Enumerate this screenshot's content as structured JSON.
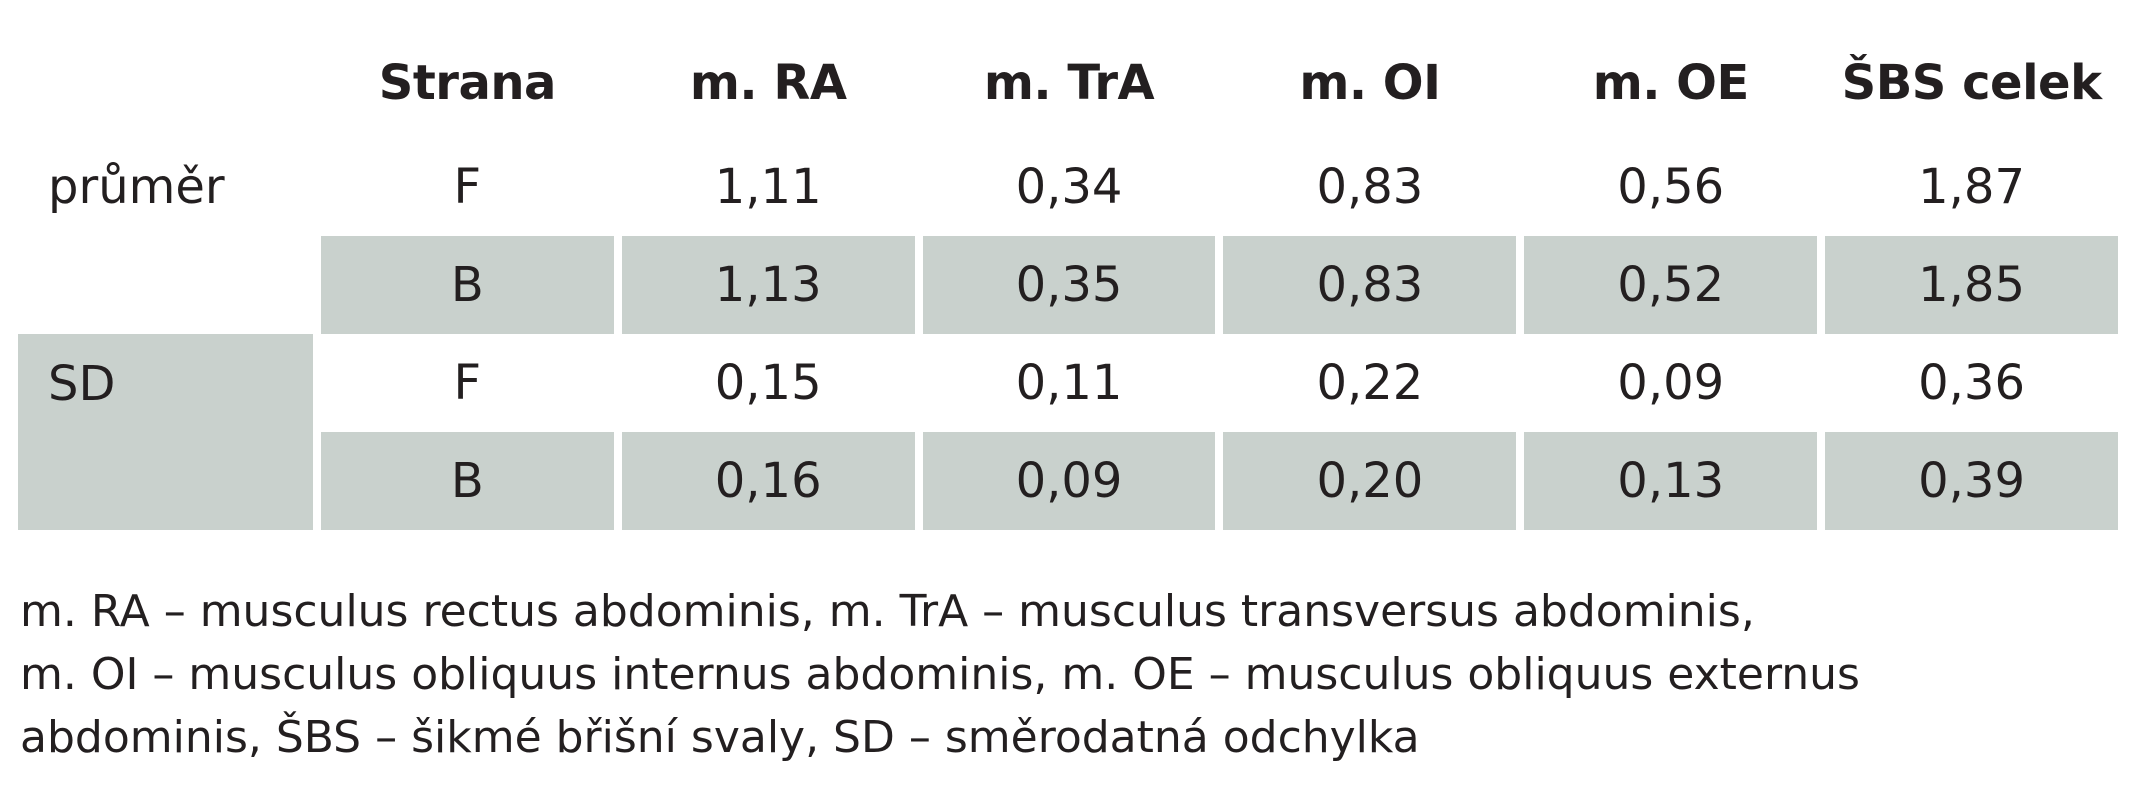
{
  "table": {
    "headers": [
      "",
      "Strana",
      "m. RA",
      "m. TrA",
      "m. OI",
      "m. OE",
      "ŠBS celek"
    ],
    "groups": [
      {
        "label": "průměr",
        "rows": [
          {
            "side": "F",
            "values": [
              "1,11",
              "0,34",
              "0,83",
              "0,56",
              "1,87"
            ]
          },
          {
            "side": "B",
            "values": [
              "1,13",
              "0,35",
              "0,83",
              "0,52",
              "1,85"
            ]
          }
        ]
      },
      {
        "label": "SD",
        "rows": [
          {
            "side": "F",
            "values": [
              "0,15",
              "0,11",
              "0,22",
              "0,09",
              "0,36"
            ]
          },
          {
            "side": "B",
            "values": [
              "0,16",
              "0,09",
              "0,20",
              "0,13",
              "0,39"
            ]
          }
        ]
      }
    ]
  },
  "legend": {
    "lines": [
      "m. RA – musculus rectus abdominis, m. TrA – musculus transversus abdominis,",
      "m. OI – musculus obliquus internus abdominis, m. OE – musculus obliquus externus",
      "abdominis, ŠBS – šikmé břišní svaly, SD – směrodatná odchylka"
    ]
  },
  "colors": {
    "shade": "#c9d1cd",
    "text": "#231f20"
  }
}
